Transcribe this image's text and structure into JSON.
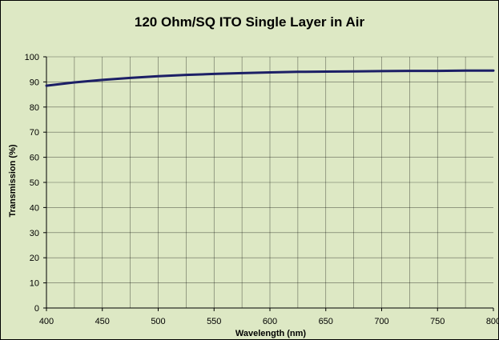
{
  "chart_data": {
    "type": "line",
    "title": "120 Ohm/SQ ITO Single Layer in Air",
    "xlabel": "Wavelength (nm)",
    "ylabel": "Transmission (%)",
    "xlim": [
      400,
      800
    ],
    "ylim": [
      0,
      100
    ],
    "x_ticks": [
      400,
      450,
      500,
      550,
      600,
      650,
      700,
      750,
      800
    ],
    "y_ticks": [
      0,
      10,
      20,
      30,
      40,
      50,
      60,
      70,
      80,
      90,
      100
    ],
    "grid": true,
    "legend": false,
    "series": [
      {
        "x": [
          400,
          425,
          450,
          475,
          500,
          525,
          550,
          575,
          600,
          625,
          650,
          675,
          700,
          725,
          750,
          775,
          800
        ],
        "y": [
          88.5,
          89.8,
          90.8,
          91.6,
          92.3,
          92.8,
          93.2,
          93.5,
          93.8,
          94.0,
          94.1,
          94.2,
          94.3,
          94.4,
          94.4,
          94.5,
          94.5
        ]
      }
    ],
    "colors": {
      "background": "#dde8c4",
      "line": "#1c1f66",
      "grid": "#000000"
    }
  }
}
